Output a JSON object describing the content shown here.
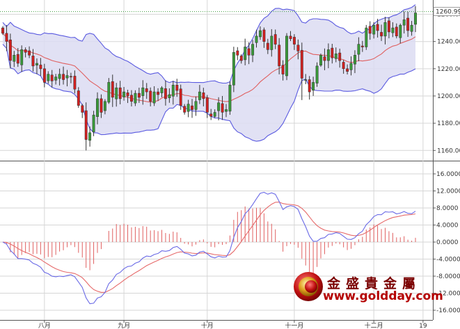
{
  "chart_data": [
    {
      "type": "candlestick",
      "title": "",
      "xlabel": "",
      "ylabel": "",
      "ylim": [
        1150,
        1270
      ],
      "yticks": [
        "1160.00",
        "1180.00",
        "1200.00",
        "1220.00",
        "1240.00",
        "1260.00"
      ],
      "last_price_label": "1260.99",
      "xticks": [
        {
          "label": "八月",
          "index": 11
        },
        {
          "label": "九月",
          "index": 32
        },
        {
          "label": "十月",
          "index": 54
        },
        {
          "label": "十一月",
          "index": 77
        },
        {
          "label": "十二月",
          "index": 98
        },
        {
          "label": "19",
          "index": 111
        }
      ],
      "colors": {
        "up": "#3a9a3a",
        "down": "#d22020",
        "band_fill": "#dcdcf2",
        "band_line": "#5a5ae0",
        "mid_line": "#e06060"
      },
      "close": [
        1246,
        1240,
        1226,
        1230,
        1224,
        1234,
        1232,
        1230,
        1222,
        1224,
        1220,
        1210,
        1216,
        1211,
        1214,
        1216,
        1212,
        1215,
        1214,
        1205,
        1193,
        1188,
        1168,
        1173,
        1186,
        1198,
        1188,
        1196,
        1210,
        1199,
        1206,
        1198,
        1203,
        1200,
        1196,
        1202,
        1199,
        1206,
        1203,
        1196,
        1203,
        1201,
        1206,
        1198,
        1201,
        1208,
        1204,
        1193,
        1188,
        1194,
        1190,
        1196,
        1203,
        1198,
        1188,
        1185,
        1188,
        1195,
        1188,
        1190,
        1208,
        1232,
        1230,
        1226,
        1236,
        1230,
        1238,
        1244,
        1248,
        1240,
        1234,
        1244,
        1238,
        1222,
        1216,
        1244,
        1242,
        1238,
        1233,
        1213,
        1212,
        1203,
        1210,
        1222,
        1230,
        1226,
        1234,
        1228,
        1231,
        1226,
        1220,
        1218,
        1224,
        1230,
        1238,
        1236,
        1250,
        1246,
        1252,
        1248,
        1244,
        1254,
        1247,
        1250,
        1244,
        1252,
        1256,
        1248,
        1252,
        1261
      ],
      "macd": {
        "ylim": [
          -17,
          17
        ],
        "yticks": [
          "16.0000",
          "12.0000",
          "8.0000",
          "4.0000",
          "0.0000",
          "-4.0000",
          "-8.0000",
          "-12.0000",
          "-16.0000"
        ],
        "colors": {
          "macd": "#6a6ae6",
          "signal": "#e66a6a",
          "hist_pos": "#e06060",
          "hist_neg": "#e06060"
        }
      }
    }
  ],
  "logo": {
    "name_cn": "金盛貴金屬",
    "url": "www.goldday.com"
  }
}
